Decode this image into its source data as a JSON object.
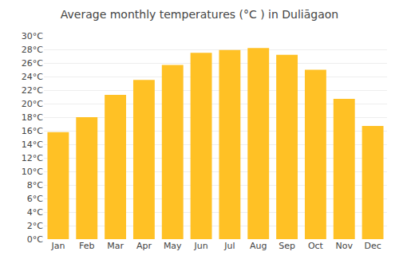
{
  "chart_data": {
    "type": "bar",
    "title": "Average monthly temperatures (°C ) in Duliāgaon",
    "categories": [
      "Jan",
      "Feb",
      "Mar",
      "Apr",
      "May",
      "Jun",
      "Jul",
      "Aug",
      "Sep",
      "Oct",
      "Nov",
      "Dec"
    ],
    "values": [
      15.8,
      18.0,
      21.3,
      23.5,
      25.7,
      27.5,
      27.9,
      28.2,
      27.2,
      25.0,
      20.7,
      16.7
    ],
    "color": "#FFC125",
    "ylim": [
      0,
      30
    ],
    "yticks": [
      {
        "value": 0,
        "label": "0°C"
      },
      {
        "value": 2,
        "label": "2°C"
      },
      {
        "value": 4,
        "label": "4°C"
      },
      {
        "value": 6,
        "label": "6°C"
      },
      {
        "value": 8,
        "label": "8°C"
      },
      {
        "value": 10,
        "label": "10°C"
      },
      {
        "value": 12,
        "label": "12°C"
      },
      {
        "value": 14,
        "label": "14°C"
      },
      {
        "value": 16,
        "label": "16°C"
      },
      {
        "value": 18,
        "label": "18°C"
      },
      {
        "value": 20,
        "label": "20°C"
      },
      {
        "value": 22,
        "label": "22°C"
      },
      {
        "value": 24,
        "label": "24°C"
      },
      {
        "value": 26,
        "label": "26°C"
      },
      {
        "value": 28,
        "label": "28°C"
      },
      {
        "value": 30,
        "label": "30°C"
      }
    ],
    "grid": true
  }
}
